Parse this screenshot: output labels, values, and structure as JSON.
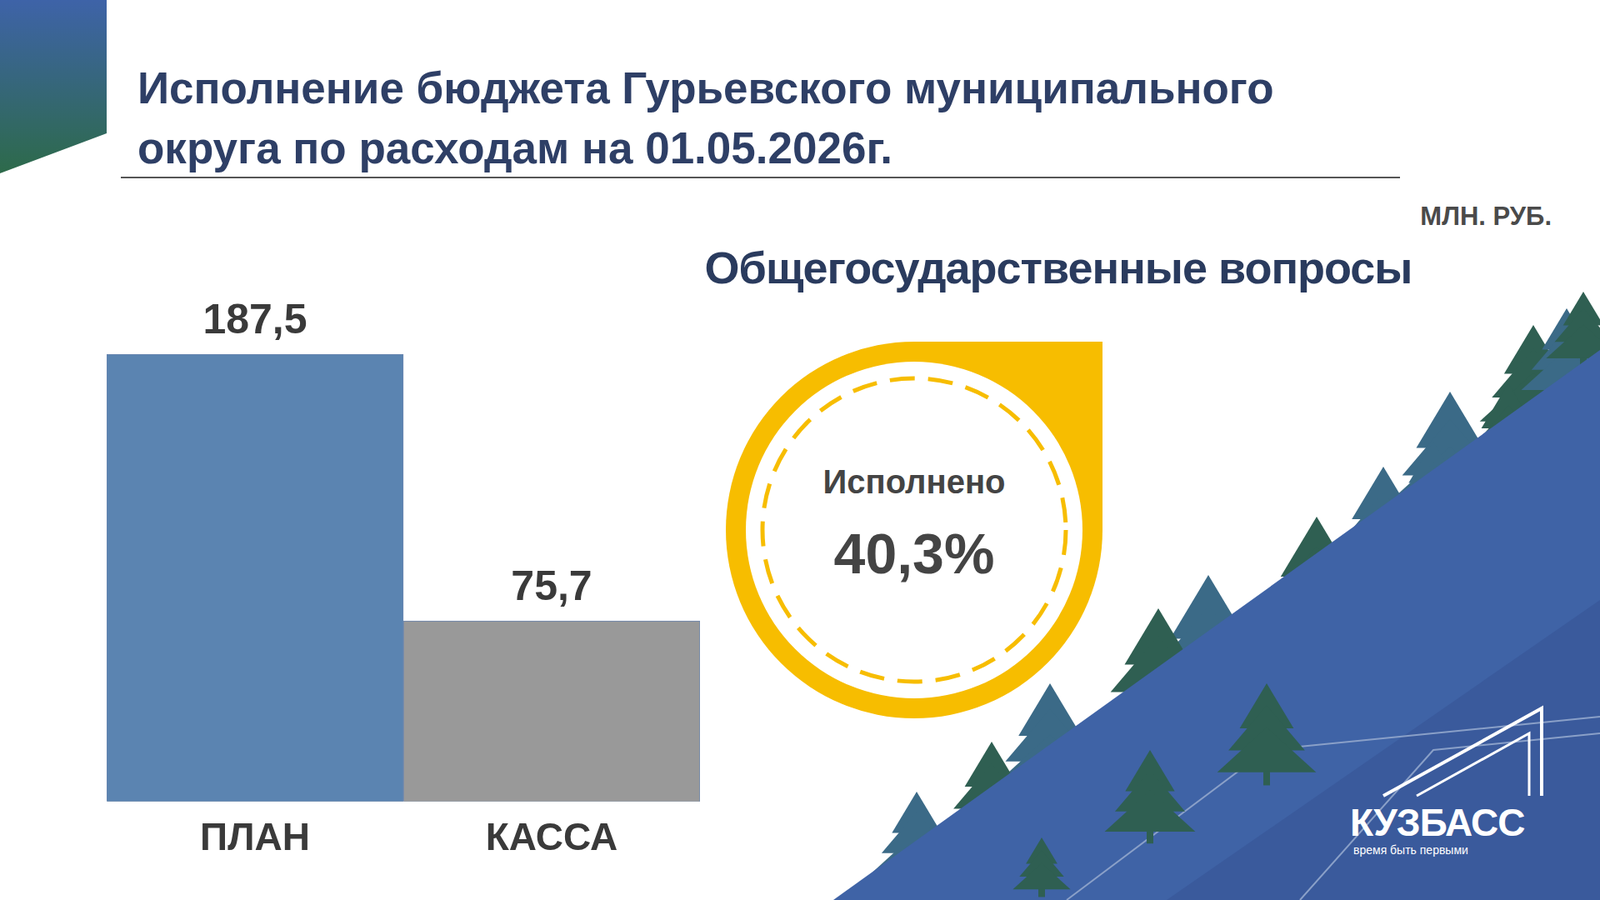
{
  "header": {
    "title": "Исполнение бюджета Гурьевского муниципального округа по расходам на 01.05.2026г.",
    "units": "МЛН. РУБ."
  },
  "chart_data": {
    "type": "bar",
    "title": "Общегосударственные вопросы",
    "categories": [
      "ПЛАН",
      "КАССА"
    ],
    "values": [
      187.5,
      75.7
    ],
    "value_labels": [
      "187,5",
      "75,7"
    ],
    "colors": [
      "#5b84b1",
      "#999999"
    ],
    "ylim": [
      0,
      187.5
    ],
    "grid": false,
    "data_labels": true,
    "tick_labels": "x"
  },
  "completion": {
    "label": "Исполнено",
    "value": "40,3%"
  },
  "logo": {
    "name": "КУЗБАСС",
    "slogan": "время быть первыми"
  }
}
